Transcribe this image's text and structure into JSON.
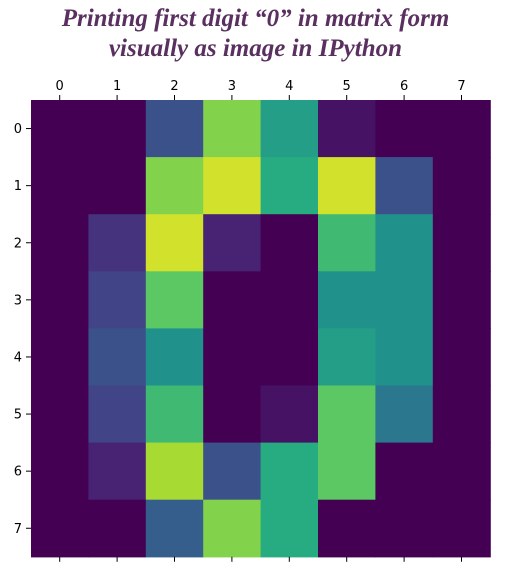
{
  "title": {
    "line1": "Printing first digit “0” in matrix form",
    "line2": "visually as image in IPython"
  },
  "chart_data": {
    "type": "heatmap",
    "colormap": "viridis",
    "value_range": [
      0,
      16
    ],
    "x_ticks": [
      "0",
      "1",
      "2",
      "3",
      "4",
      "5",
      "6",
      "7"
    ],
    "y_ticks": [
      "0",
      "1",
      "2",
      "3",
      "4",
      "5",
      "6",
      "7"
    ],
    "x_tick_position": "top",
    "grid": false,
    "values": [
      [
        0,
        0,
        5,
        13,
        9,
        1,
        0,
        0
      ],
      [
        0,
        0,
        13,
        15,
        10,
        15,
        5,
        0
      ],
      [
        0,
        3,
        15,
        2,
        0,
        11,
        8,
        0
      ],
      [
        0,
        4,
        12,
        0,
        0,
        8,
        8,
        0
      ],
      [
        0,
        5,
        8,
        0,
        0,
        9,
        8,
        0
      ],
      [
        0,
        4,
        11,
        0,
        1,
        12,
        7,
        0
      ],
      [
        0,
        2,
        14,
        5,
        10,
        12,
        0,
        0
      ],
      [
        0,
        0,
        6,
        13,
        10,
        0,
        0,
        0
      ]
    ]
  }
}
